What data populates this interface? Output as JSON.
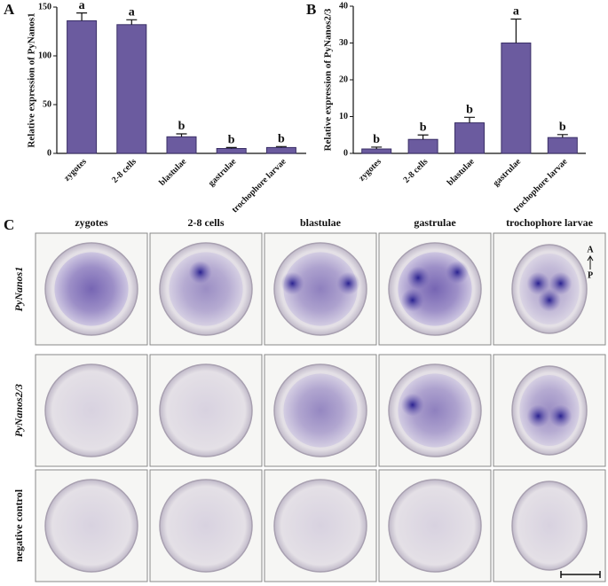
{
  "chart_data": [
    {
      "type": "bar",
      "panel": "A",
      "ylabel": "Relative expression of PyNanos1",
      "categories": [
        "zygotes",
        "2-8 cells",
        "blastulae",
        "gastrulae",
        "trochophore larvae"
      ],
      "values": [
        136,
        132,
        17,
        5,
        6
      ],
      "errors": [
        8,
        5,
        3,
        1,
        1
      ],
      "annotations": [
        "a",
        "a",
        "b",
        "b",
        "b"
      ],
      "color": "#6b5b9f",
      "ylim": [
        0,
        150
      ],
      "yticks": [
        0,
        50,
        100,
        150
      ]
    },
    {
      "type": "bar",
      "panel": "B",
      "ylabel": "Relative expression of PyNanos2/3",
      "categories": [
        "zygotes",
        "2-8 cells",
        "blastulae",
        "gastrulae",
        "trochophore larvae"
      ],
      "values": [
        1.2,
        3.8,
        8.3,
        30,
        4.3
      ],
      "errors": [
        0.5,
        1.2,
        1.5,
        6.5,
        0.8
      ],
      "annotations": [
        "b",
        "b",
        "b",
        "a",
        "b"
      ],
      "color": "#6b5b9f",
      "ylim": [
        0,
        40
      ],
      "yticks": [
        0,
        10,
        20,
        30,
        40
      ]
    }
  ],
  "panel_c": {
    "label": "C",
    "columns": [
      "zygotes",
      "2-8 cells",
      "blastulae",
      "gastrulae",
      "trochophore larvae"
    ],
    "rows": [
      "PyNanos1",
      "PyNanos2/3",
      "negative control"
    ],
    "axis_top": "A",
    "axis_bottom": "P"
  }
}
